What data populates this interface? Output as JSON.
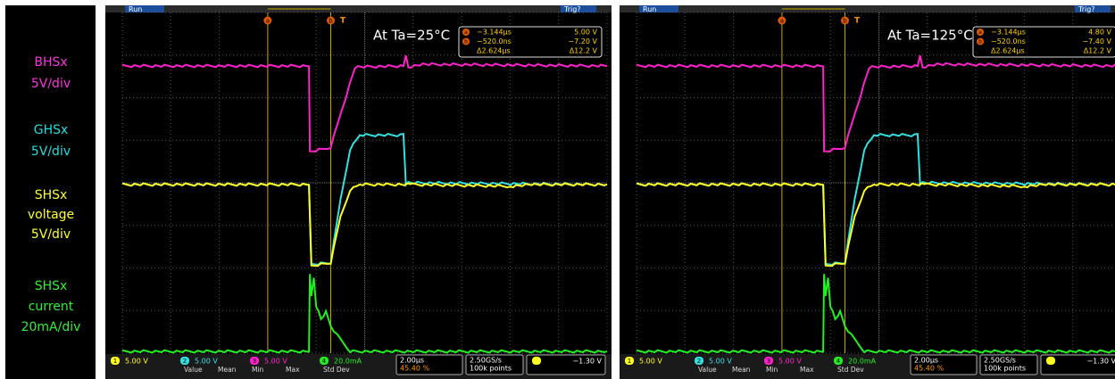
{
  "sidebar": {
    "labels": [
      {
        "lines": [
          "BHSx",
          "5V/div"
        ]
      },
      {
        "lines": [
          "GHSx",
          "5V/div"
        ]
      },
      {
        "lines": [
          "SHSx",
          "voltage",
          "5V/div"
        ]
      },
      {
        "lines": [
          "SHSx",
          "current",
          "20mA/div"
        ]
      }
    ]
  },
  "panels": [
    {
      "status": "Run",
      "trigger": "Trig?",
      "annotation": "At Ta=25°C",
      "cursor_markers": [
        "a",
        "b"
      ],
      "trigger_marker": "T",
      "readout": {
        "a_time": "−3.144µs",
        "a_value": "5.00 V",
        "b_time": "−520.0ns",
        "b_value": "−7.20 V",
        "delta_time": "Δ2.624µs",
        "delta_value": "Δ12.2 V"
      },
      "channels": [
        {
          "num": "1",
          "scale": "5.00 V"
        },
        {
          "num": "2",
          "scale": "5.00 V"
        },
        {
          "num": "3",
          "scale": "5.00 V"
        },
        {
          "num": "4",
          "scale": "20.0mA"
        }
      ],
      "timebase": "2.00µs",
      "trigger_position": "45.40 %",
      "sample_rate": "2.50GS/s",
      "record_length": "100k points",
      "trigger_level": "−1.30 V",
      "stats_header": [
        "Value",
        "Mean",
        "Min",
        "Max",
        "Std Dev"
      ]
    },
    {
      "status": "Run",
      "trigger": "Trig?",
      "annotation": "At Ta=125°C",
      "cursor_markers": [
        "a",
        "b"
      ],
      "trigger_marker": "T",
      "readout": {
        "a_time": "−3.144µs",
        "a_value": "4.80 V",
        "b_time": "−520.0ns",
        "b_value": "−7.40 V",
        "delta_time": "Δ2.624µs",
        "delta_value": "Δ12.2 V"
      },
      "channels": [
        {
          "num": "1",
          "scale": "5.00 V"
        },
        {
          "num": "2",
          "scale": "5.00 V"
        },
        {
          "num": "3",
          "scale": "5.00 V"
        },
        {
          "num": "4",
          "scale": "20.0mA"
        }
      ],
      "timebase": "2.00µs",
      "trigger_position": "45.40 %",
      "sample_rate": "2.50GS/s",
      "record_length": "100k points",
      "trigger_level": "−1.30 V",
      "stats_header": [
        "Value",
        "Mean",
        "Min",
        "Max",
        "Std Dev"
      ]
    }
  ]
}
